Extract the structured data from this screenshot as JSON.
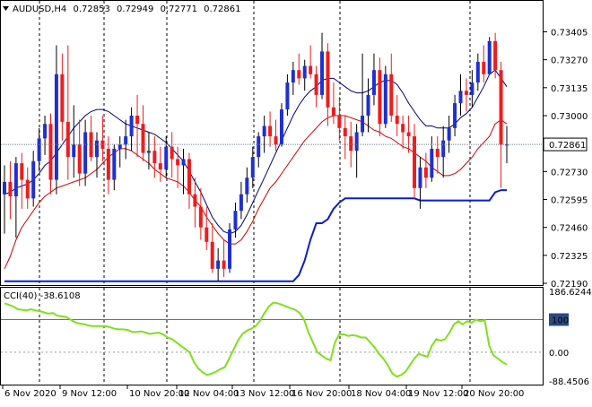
{
  "header": {
    "symbol": "AUDUSD,H4",
    "open": "0.72853",
    "high": "0.72949",
    "low": "0.72771",
    "close": "0.72861",
    "menu_icon": "triangle-down-icon"
  },
  "colors": {
    "bull": "#1f2fd0",
    "bear": "#ef1c1c",
    "ma_fast": "#000080",
    "ma_slow": "#cc0000",
    "lower_line": "#0a1ec8",
    "cci": "#7fe01c",
    "price_tag_bg": "#ffffff",
    "grid": "#000000",
    "separator": "#000000"
  },
  "chart_data": [
    {
      "type": "candlestick",
      "title": "AUDUSD,H4",
      "current_price": 0.72861,
      "price_tag": "0.72861",
      "ylim": [
        0.7219,
        0.7355
      ],
      "yticks": [
        "0.73405",
        "0.73270",
        "0.73135",
        "0.73000",
        "0.72730",
        "0.72595",
        "0.72460",
        "0.72325",
        "0.72190"
      ],
      "candles": [
        [
          0.7262,
          0.7276,
          0.7243,
          0.7268
        ],
        [
          0.7268,
          0.7278,
          0.725,
          0.7261
        ],
        [
          0.7261,
          0.728,
          0.7241,
          0.7277
        ],
        [
          0.7277,
          0.7282,
          0.7255,
          0.7269
        ],
        [
          0.7269,
          0.7275,
          0.7255,
          0.726
        ],
        [
          0.726,
          0.7283,
          0.7256,
          0.7278
        ],
        [
          0.7278,
          0.7294,
          0.7273,
          0.7289
        ],
        [
          0.7289,
          0.73,
          0.7281,
          0.7296
        ],
        [
          0.7296,
          0.7301,
          0.7262,
          0.7269
        ],
        [
          0.7269,
          0.7334,
          0.7262,
          0.732
        ],
        [
          0.732,
          0.733,
          0.7288,
          0.7297
        ],
        [
          0.7297,
          0.7334,
          0.7269,
          0.728
        ],
        [
          0.728,
          0.7305,
          0.727,
          0.7286
        ],
        [
          0.7286,
          0.7298,
          0.7266,
          0.7272
        ],
        [
          0.7272,
          0.7298,
          0.7266,
          0.7292
        ],
        [
          0.7292,
          0.73,
          0.7278,
          0.728
        ],
        [
          0.728,
          0.7292,
          0.727,
          0.7288
        ],
        [
          0.7288,
          0.73,
          0.7278,
          0.7284
        ],
        [
          0.7284,
          0.729,
          0.7262,
          0.7269
        ],
        [
          0.7269,
          0.7286,
          0.7264,
          0.7284
        ],
        [
          0.7284,
          0.729,
          0.7275,
          0.7286
        ],
        [
          0.7286,
          0.7298,
          0.7279,
          0.729
        ],
        [
          0.729,
          0.7304,
          0.7283,
          0.73
        ],
        [
          0.73,
          0.731,
          0.728,
          0.7296
        ],
        [
          0.7296,
          0.7305,
          0.7278,
          0.7282
        ],
        [
          0.7282,
          0.7292,
          0.7274,
          0.7283
        ],
        [
          0.7283,
          0.729,
          0.727,
          0.7277
        ],
        [
          0.7277,
          0.7285,
          0.7268,
          0.7274
        ],
        [
          0.7274,
          0.729,
          0.727,
          0.7285
        ],
        [
          0.7285,
          0.7292,
          0.727,
          0.7279
        ],
        [
          0.7279,
          0.7285,
          0.7265,
          0.7276
        ],
        [
          0.7276,
          0.7284,
          0.7262,
          0.7279
        ],
        [
          0.7279,
          0.7282,
          0.7255,
          0.7262
        ],
        [
          0.7262,
          0.727,
          0.7246,
          0.7256
        ],
        [
          0.7256,
          0.7265,
          0.724,
          0.7246
        ],
        [
          0.7246,
          0.7256,
          0.7235,
          0.7239
        ],
        [
          0.7239,
          0.7248,
          0.7224,
          0.7226
        ],
        [
          0.7226,
          0.7236,
          0.722,
          0.723
        ],
        [
          0.723,
          0.724,
          0.7222,
          0.7226
        ],
        [
          0.7226,
          0.7248,
          0.7224,
          0.7245
        ],
        [
          0.7245,
          0.7258,
          0.7241,
          0.7254
        ],
        [
          0.7254,
          0.7268,
          0.725,
          0.7262
        ],
        [
          0.7262,
          0.7275,
          0.7258,
          0.727
        ],
        [
          0.727,
          0.7285,
          0.7265,
          0.728
        ],
        [
          0.728,
          0.7292,
          0.7275,
          0.729
        ],
        [
          0.729,
          0.73,
          0.7282,
          0.7295
        ],
        [
          0.7295,
          0.7302,
          0.7285,
          0.729
        ],
        [
          0.729,
          0.7298,
          0.7283,
          0.7286
        ],
        [
          0.7286,
          0.7306,
          0.7285,
          0.7303
        ],
        [
          0.7303,
          0.732,
          0.73,
          0.7316
        ],
        [
          0.7316,
          0.7326,
          0.731,
          0.7322
        ],
        [
          0.7322,
          0.733,
          0.7315,
          0.7318
        ],
        [
          0.7318,
          0.7327,
          0.7312,
          0.7324
        ],
        [
          0.7324,
          0.7334,
          0.7318,
          0.732
        ],
        [
          0.732,
          0.7324,
          0.7304,
          0.731
        ],
        [
          0.731,
          0.734,
          0.7308,
          0.7331
        ],
        [
          0.7331,
          0.7335,
          0.7295,
          0.7304
        ],
        [
          0.7304,
          0.7316,
          0.7296,
          0.73
        ],
        [
          0.73,
          0.7309,
          0.7288,
          0.7294
        ],
        [
          0.7294,
          0.73,
          0.7279,
          0.729
        ],
        [
          0.729,
          0.7297,
          0.7275,
          0.7283
        ],
        [
          0.7283,
          0.7296,
          0.727,
          0.7292
        ],
        [
          0.7292,
          0.733,
          0.729,
          0.73
        ],
        [
          0.73,
          0.7318,
          0.7292,
          0.731
        ],
        [
          0.731,
          0.733,
          0.7305,
          0.7322
        ],
        [
          0.7322,
          0.7328,
          0.729,
          0.7296
        ],
        [
          0.7296,
          0.7324,
          0.7294,
          0.732
        ],
        [
          0.732,
          0.733,
          0.7297,
          0.73
        ],
        [
          0.73,
          0.731,
          0.729,
          0.7296
        ],
        [
          0.7296,
          0.73,
          0.7284,
          0.7292
        ],
        [
          0.7292,
          0.73,
          0.7282,
          0.729
        ],
        [
          0.729,
          0.7296,
          0.726,
          0.7265
        ],
        [
          0.7265,
          0.728,
          0.7255,
          0.7275
        ],
        [
          0.7275,
          0.7282,
          0.7265,
          0.727
        ],
        [
          0.727,
          0.729,
          0.7268,
          0.7284
        ],
        [
          0.7284,
          0.729,
          0.7272,
          0.728
        ],
        [
          0.728,
          0.7295,
          0.727,
          0.7288
        ],
        [
          0.7288,
          0.73,
          0.7282,
          0.7294
        ],
        [
          0.7294,
          0.731,
          0.729,
          0.7306
        ],
        [
          0.7306,
          0.732,
          0.73,
          0.7312
        ],
        [
          0.7312,
          0.7318,
          0.7302,
          0.731
        ],
        [
          0.731,
          0.7322,
          0.7304,
          0.7316
        ],
        [
          0.7316,
          0.733,
          0.7312,
          0.7326
        ],
        [
          0.7326,
          0.7334,
          0.7316,
          0.732
        ],
        [
          0.732,
          0.7338,
          0.732,
          0.7336
        ],
        [
          0.7336,
          0.734,
          0.7318,
          0.7322
        ],
        [
          0.7322,
          0.7326,
          0.7265,
          0.7286
        ],
        [
          0.7286,
          0.7295,
          0.7277,
          0.7286
        ]
      ],
      "moving_averages": [
        {
          "color": "ma_fast",
          "values": [
            0.7262,
            0.7263,
            0.7265,
            0.7266,
            0.7267,
            0.7269,
            0.7272,
            0.7276,
            0.7278,
            0.7282,
            0.7286,
            0.729,
            0.7294,
            0.7297,
            0.73,
            0.7302,
            0.7303,
            0.7303,
            0.7302,
            0.73,
            0.7298,
            0.7296,
            0.7295,
            0.7294,
            0.7293,
            0.7292,
            0.7291,
            0.7289,
            0.7287,
            0.7284,
            0.7281,
            0.7278,
            0.7273,
            0.7268,
            0.7263,
            0.7257,
            0.7251,
            0.7247,
            0.7244,
            0.7243,
            0.7244,
            0.7247,
            0.7252,
            0.7258,
            0.7264,
            0.727,
            0.7276,
            0.7282,
            0.7288,
            0.7294,
            0.73,
            0.7305,
            0.7309,
            0.7312,
            0.7314,
            0.7317,
            0.7318,
            0.7318,
            0.7316,
            0.7314,
            0.7312,
            0.7311,
            0.7311,
            0.7312,
            0.7314,
            0.7316,
            0.7317,
            0.7317,
            0.7315,
            0.7311,
            0.7306,
            0.7302,
            0.7298,
            0.7295,
            0.7295,
            0.7294,
            0.7294,
            0.7294,
            0.7296,
            0.7299,
            0.7301,
            0.7304,
            0.7309,
            0.7314,
            0.732,
            0.7322,
            0.7318,
            0.7314
          ]
        },
        {
          "color": "ma_slow",
          "values": [
            0.7226,
            0.7232,
            0.724,
            0.7246,
            0.725,
            0.7254,
            0.7258,
            0.7261,
            0.7263,
            0.7265,
            0.7266,
            0.7267,
            0.7268,
            0.7269,
            0.727,
            0.7272,
            0.7274,
            0.7277,
            0.728,
            0.7282,
            0.7284,
            0.7284,
            0.7283,
            0.7281,
            0.7279,
            0.7277,
            0.7274,
            0.7272,
            0.727,
            0.7269,
            0.7268,
            0.7266,
            0.7263,
            0.7259,
            0.7256,
            0.7251,
            0.7247,
            0.7243,
            0.724,
            0.7238,
            0.7238,
            0.724,
            0.7244,
            0.7249,
            0.7255,
            0.726,
            0.7265,
            0.7268,
            0.7272,
            0.7276,
            0.728,
            0.7284,
            0.7288,
            0.7291,
            0.7294,
            0.7297,
            0.7299,
            0.73,
            0.73,
            0.73,
            0.7299,
            0.7298,
            0.7297,
            0.7295,
            0.7293,
            0.7292,
            0.729,
            0.7289,
            0.7287,
            0.7285,
            0.7284,
            0.7282,
            0.728,
            0.7278,
            0.7275,
            0.7273,
            0.7271,
            0.7271,
            0.7272,
            0.7274,
            0.7277,
            0.728,
            0.7284,
            0.7287,
            0.729,
            0.7296,
            0.7298,
            0.7296
          ]
        }
      ],
      "lower_line": {
        "color": "lower_line",
        "values": [
          0.722,
          0.722,
          0.722,
          0.722,
          0.722,
          0.722,
          0.722,
          0.722,
          0.722,
          0.722,
          0.722,
          0.722,
          0.722,
          0.722,
          0.722,
          0.722,
          0.722,
          0.722,
          0.722,
          0.722,
          0.722,
          0.722,
          0.722,
          0.722,
          0.722,
          0.722,
          0.722,
          0.722,
          0.722,
          0.722,
          0.722,
          0.722,
          0.722,
          0.722,
          0.722,
          0.722,
          0.722,
          0.722,
          0.722,
          0.722,
          0.722,
          0.722,
          0.722,
          0.722,
          0.722,
          0.722,
          0.722,
          0.722,
          0.722,
          0.722,
          0.722,
          0.7223,
          0.723,
          0.724,
          0.7248,
          0.7248,
          0.725,
          0.7255,
          0.7258,
          0.726,
          0.726,
          0.726,
          0.726,
          0.726,
          0.726,
          0.726,
          0.726,
          0.726,
          0.726,
          0.726,
          0.726,
          0.726,
          0.7259,
          0.7259,
          0.7259,
          0.7259,
          0.7259,
          0.7259,
          0.7259,
          0.7259,
          0.7259,
          0.7259,
          0.7259,
          0.7259,
          0.7259,
          0.7263,
          0.7264,
          0.7264
        ]
      }
    },
    {
      "type": "line",
      "title": "CCI(40) -38.6108",
      "label": "CCI(40) -38.6108",
      "ylim": [
        -88.4506,
        186.6244
      ],
      "yticks": [
        "186.6244",
        "100",
        "0.00",
        "-88.4506"
      ],
      "level": 100,
      "values": [
        150,
        145,
        140,
        132,
        130,
        128,
        132,
        128,
        126,
        122,
        118,
        120,
        112,
        110,
        108,
        100,
        92,
        88,
        86,
        82,
        80,
        80,
        80,
        80,
        76,
        72,
        70,
        70,
        68,
        62,
        62,
        64,
        60,
        56,
        58,
        60,
        55,
        45,
        40,
        30,
        20,
        10,
        0,
        -30,
        -50,
        -62,
        -70,
        -66,
        -60,
        -52,
        -46,
        -20,
        8,
        36,
        56,
        66,
        72,
        80,
        96,
        120,
        140,
        152,
        150,
        145,
        140,
        135,
        130,
        120,
        100,
        60,
        30,
        0,
        -10,
        -20,
        -25,
        30,
        55,
        55,
        50,
        52,
        50,
        45,
        45,
        30,
        15,
        -5,
        -20,
        -40,
        -65,
        -75,
        -70,
        -60,
        -40,
        -20,
        -5,
        -10,
        -14,
        20,
        40,
        35,
        40,
        60,
        85,
        95,
        85,
        95,
        90,
        100,
        95,
        98,
        20,
        -10,
        -20,
        -30,
        -38
      ]
    }
  ],
  "x_axis": {
    "labels": [
      "6 Nov 2020",
      "9 Nov 12:00",
      "10 Nov 20:00",
      "12 Nov 04:00",
      "13 Nov 12:00",
      "16 Nov 20:00",
      "18 Nov 04:00",
      "19 Nov 12:00",
      "20 Nov 20:00"
    ]
  }
}
